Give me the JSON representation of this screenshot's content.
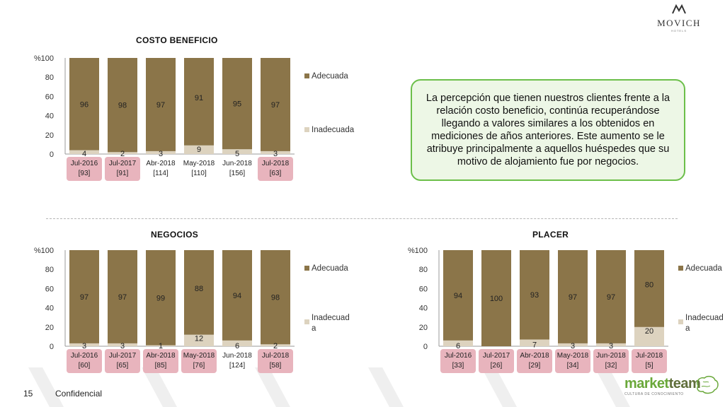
{
  "brand": {
    "name": "MOVICH",
    "sub": "HOTELS"
  },
  "callout_text": "La percepción que tienen nuestros clientes frente a la relación costo beneficio, continúa recuperándose llegando a valores similares a los obtenidos en mediciones de años anteriores. Este aumento se le atribuye principalmente a aquellos huéspedes que su motivo de alojamiento fue por negocios.",
  "footer": {
    "page_number": "15",
    "label": "Confidencial",
    "partner_name_1": "market",
    "partner_name_2": "team",
    "partner_tagline": "CULTURA DE CONOCIMIENTO"
  },
  "colors": {
    "adecuada": "#8b7549",
    "inadecuada": "#ddd3bf",
    "highlight": "#e8b4bd",
    "callout_border": "#6cbf4a"
  },
  "chart_data": [
    {
      "type": "bar",
      "stacked": true,
      "title": "COSTO BENEFICIO",
      "ylabel": "%",
      "ylim": [
        0,
        100
      ],
      "yticks": [
        0,
        20,
        40,
        60,
        80,
        100
      ],
      "legend_position": "right",
      "categories": [
        "Jul-2016",
        "Jul-2017",
        "Abr-2018",
        "May-2018",
        "Jun-2018",
        "Jul-2018"
      ],
      "sample_sizes": [
        "[93]",
        "[91]",
        "[114]",
        "[110]",
        "[156]",
        "[63]"
      ],
      "highlighted": [
        true,
        true,
        false,
        false,
        false,
        true
      ],
      "series": [
        {
          "name": "Adecuada",
          "values": [
            96,
            98,
            97,
            91,
            95,
            97
          ]
        },
        {
          "name": "Inadecuada",
          "values": [
            4,
            2,
            3,
            9,
            5,
            3
          ]
        }
      ]
    },
    {
      "type": "bar",
      "stacked": true,
      "title": "NEGOCIOS",
      "ylabel": "%",
      "ylim": [
        0,
        100
      ],
      "yticks": [
        0,
        20,
        40,
        60,
        80,
        100
      ],
      "legend_position": "right",
      "categories": [
        "Jul-2016",
        "Jul-2017",
        "Abr-2018",
        "May-2018",
        "Jun-2018",
        "Jul-2018"
      ],
      "sample_sizes": [
        "[60]",
        "[65]",
        "[85]",
        "[76]",
        "[124]",
        "[58]"
      ],
      "highlighted": [
        true,
        true,
        true,
        true,
        false,
        true
      ],
      "series": [
        {
          "name": "Adecuada",
          "values": [
            97,
            97,
            99,
            88,
            94,
            98
          ]
        },
        {
          "name": "Inadecuada",
          "values": [
            3,
            3,
            1,
            12,
            6,
            2
          ]
        }
      ]
    },
    {
      "type": "bar",
      "stacked": true,
      "title": "PLACER",
      "ylabel": "%",
      "ylim": [
        0,
        100
      ],
      "yticks": [
        0,
        20,
        40,
        60,
        80,
        100
      ],
      "legend_position": "right",
      "categories": [
        "Jul-2016",
        "Jul-2017",
        "Abr-2018",
        "May-2018",
        "Jun-2018",
        "Jul-2018"
      ],
      "sample_sizes": [
        "[33]",
        "[26]",
        "[29]",
        "[34]",
        "[32]",
        "[5]"
      ],
      "highlighted": [
        true,
        true,
        true,
        true,
        true,
        true
      ],
      "series": [
        {
          "name": "Adecuada",
          "values": [
            94,
            100,
            93,
            97,
            97,
            80
          ]
        },
        {
          "name": "Inadecuada",
          "values": [
            6,
            0,
            7,
            3,
            3,
            20
          ]
        }
      ]
    }
  ]
}
